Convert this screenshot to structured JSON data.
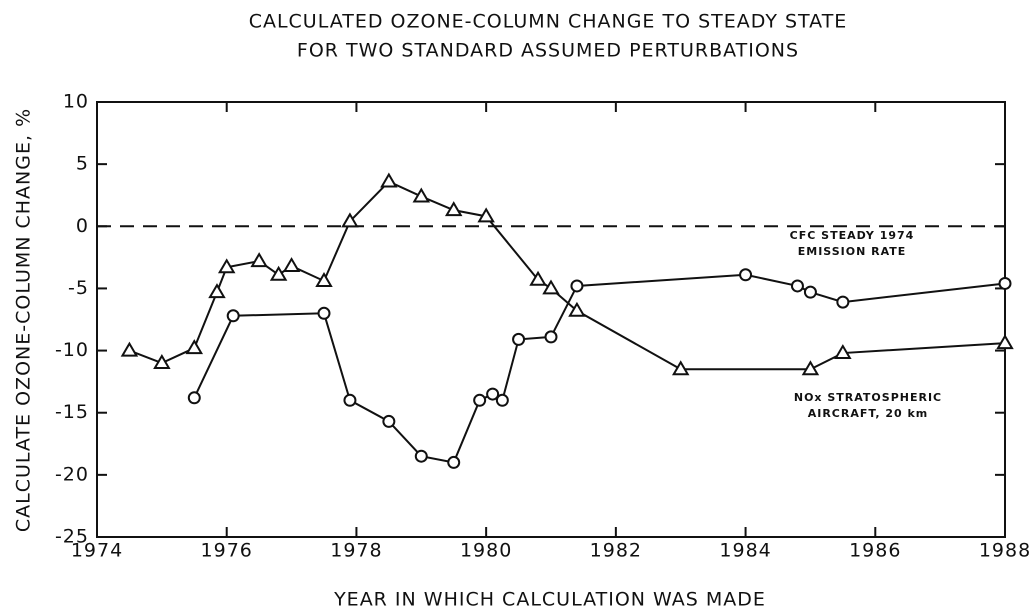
{
  "chart_data": {
    "type": "line",
    "title": [
      "CALCULATED OZONE-COLUMN CHANGE TO STEADY STATE",
      "FOR TWO STANDARD ASSUMED PERTURBATIONS"
    ],
    "x_label": "YEAR IN WHICH CALCULATION WAS MADE",
    "y_label": "CALCULATE OZONE-COLUMN CHANGE, %",
    "xlim": [
      1974,
      1988
    ],
    "xticks": [
      1974,
      1976,
      1978,
      1980,
      1982,
      1984,
      1986,
      1988
    ],
    "ylim": [
      -25,
      10
    ],
    "yticks": [
      10,
      5,
      0,
      -5,
      -10,
      -15,
      -20,
      -25
    ],
    "series": [
      {
        "label_lines": [
          "NOx STRATOSPHERIC",
          "AIRCRAFT, 20 km"
        ],
        "marker": "triangle",
        "color": "#111",
        "x": [
          1974.5,
          1975,
          1975.5,
          1975.85,
          1976,
          1976.5,
          1976.8,
          1977,
          1977.5,
          1977.9,
          1978.5,
          1979,
          1979.5,
          1980,
          1980.8,
          1981,
          1981.4,
          1983,
          1985,
          1985.5,
          1988
        ],
        "values": [
          -10,
          -11,
          -9.8,
          -5.3,
          -3.3,
          -2.8,
          -3.9,
          -3.2,
          -4.4,
          0.4,
          3.6,
          2.4,
          1.3,
          0.8,
          -4.3,
          -5,
          -6.8,
          -11.5,
          -11.5,
          -10.2,
          -9.4
        ]
      },
      {
        "label_lines": [
          "CFC STEADY 1974",
          "EMISSION RATE"
        ],
        "marker": "circle",
        "color": "#111",
        "x": [
          1975.5,
          1976.1,
          1977.5,
          1977.9,
          1978.5,
          1979,
          1979.5,
          1979.9,
          1980.1,
          1980.25,
          1980.5,
          1981,
          1981.4,
          1984,
          1984.8,
          1985,
          1985.5,
          1988
        ],
        "values": [
          -13.8,
          -7.2,
          -7,
          -14,
          -15.7,
          -18.5,
          -19,
          -14,
          -13.5,
          -14,
          -9.1,
          -8.9,
          -4.8,
          -3.9,
          -4.8,
          -5.3,
          -6.1,
          -4.6
        ]
      }
    ]
  }
}
